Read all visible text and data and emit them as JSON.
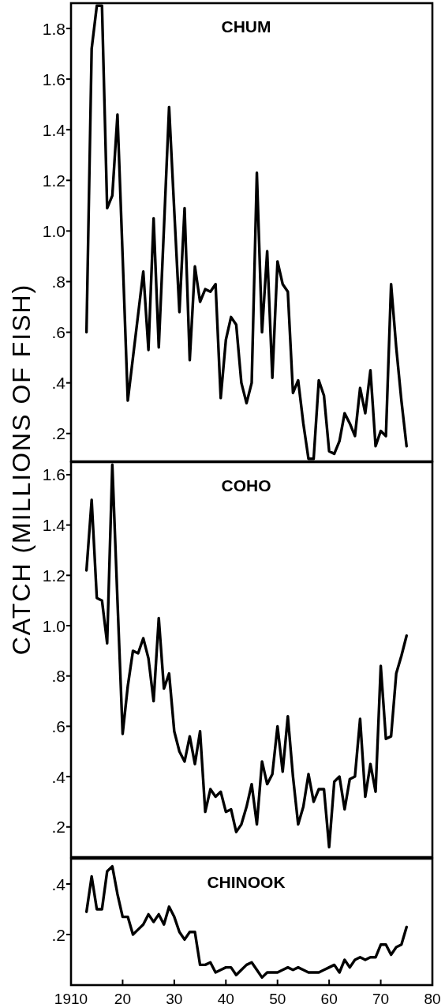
{
  "chart_data": [
    {
      "type": "line",
      "title": "CHUM",
      "ylabel": "CATCH (MILLIONS OF FISH)",
      "color": "#000000",
      "tick_labels": "y",
      "x": [
        1913,
        1914,
        1915,
        1916,
        1917,
        1918,
        1919,
        1920,
        1921,
        1922,
        1923,
        1924,
        1925,
        1926,
        1927,
        1928,
        1929,
        1930,
        1931,
        1932,
        1933,
        1934,
        1935,
        1936,
        1937,
        1938,
        1939,
        1940,
        1941,
        1942,
        1943,
        1944,
        1945,
        1946,
        1947,
        1948,
        1949,
        1950,
        1951,
        1952,
        1953,
        1954,
        1955,
        1956,
        1957,
        1958,
        1959,
        1960,
        1961,
        1962,
        1963,
        1964,
        1965,
        1966,
        1967,
        1968,
        1969,
        1970,
        1971,
        1972,
        1973,
        1974,
        1975
      ],
      "values": [
        0.6,
        1.72,
        1.89,
        1.89,
        1.09,
        1.14,
        1.46,
        0.9,
        0.33,
        0.5,
        0.67,
        0.84,
        0.53,
        1.05,
        0.54,
        1.01,
        1.49,
        1.08,
        0.68,
        1.09,
        0.49,
        0.86,
        0.72,
        0.77,
        0.76,
        0.79,
        0.34,
        0.57,
        0.66,
        0.63,
        0.4,
        0.32,
        0.4,
        1.23,
        0.6,
        0.92,
        0.42,
        0.88,
        0.79,
        0.76,
        0.36,
        0.41,
        0.24,
        0.1,
        0.1,
        0.41,
        0.35,
        0.13,
        0.12,
        0.17,
        0.28,
        0.24,
        0.19,
        0.38,
        0.28,
        0.45,
        0.15,
        0.21,
        0.19,
        0.79,
        0.54,
        0.33,
        0.15
      ],
      "xlim": [
        1910,
        1980
      ],
      "ylim": [
        0.09,
        1.9
      ],
      "yticks": [
        {
          "value": 0.2,
          "label": ".2"
        },
        {
          "value": 0.4,
          "label": ".4"
        },
        {
          "value": 0.6,
          "label": ".6"
        },
        {
          "value": 0.8,
          "label": ".8"
        },
        {
          "value": 1.0,
          "label": "1.0"
        },
        1.2,
        1.4,
        1.6,
        1.8
      ]
    },
    {
      "type": "line",
      "title": "COHO",
      "color": "#000000",
      "tick_labels": "y",
      "x": [
        1913,
        1914,
        1915,
        1916,
        1917,
        1918,
        1919,
        1920,
        1921,
        1922,
        1923,
        1924,
        1925,
        1926,
        1927,
        1928,
        1929,
        1930,
        1931,
        1932,
        1933,
        1934,
        1935,
        1936,
        1937,
        1938,
        1939,
        1940,
        1941,
        1942,
        1943,
        1944,
        1945,
        1946,
        1947,
        1948,
        1949,
        1950,
        1951,
        1952,
        1953,
        1954,
        1955,
        1956,
        1957,
        1958,
        1959,
        1960,
        1961,
        1962,
        1963,
        1964,
        1965,
        1966,
        1967,
        1968,
        1969,
        1970,
        1971,
        1972,
        1973,
        1974,
        1975
      ],
      "values": [
        1.22,
        1.5,
        1.11,
        1.1,
        0.93,
        1.64,
        1.1,
        0.57,
        0.76,
        0.9,
        0.89,
        0.95,
        0.87,
        0.7,
        1.03,
        0.75,
        0.81,
        0.58,
        0.5,
        0.46,
        0.56,
        0.45,
        0.58,
        0.26,
        0.35,
        0.32,
        0.34,
        0.26,
        0.27,
        0.18,
        0.21,
        0.28,
        0.37,
        0.21,
        0.46,
        0.37,
        0.41,
        0.6,
        0.42,
        0.64,
        0.4,
        0.21,
        0.28,
        0.41,
        0.3,
        0.35,
        0.35,
        0.12,
        0.38,
        0.4,
        0.27,
        0.39,
        0.4,
        0.63,
        0.32,
        0.45,
        0.34,
        0.84,
        0.55,
        0.56,
        0.81,
        0.88,
        0.96
      ],
      "xlim": [
        1910,
        1980
      ],
      "ylim": [
        0.08,
        1.65
      ],
      "yticks": [
        {
          "value": 0.2,
          "label": ".2"
        },
        {
          "value": 0.4,
          "label": ".4"
        },
        {
          "value": 0.6,
          "label": ".6"
        },
        {
          "value": 0.8,
          "label": ".8"
        },
        {
          "value": 1.0,
          "label": "1.0"
        },
        1.2,
        1.4,
        1.6
      ]
    },
    {
      "type": "line",
      "title": "CHINOOK",
      "color": "#000000",
      "x": [
        1913,
        1914,
        1915,
        1916,
        1917,
        1918,
        1919,
        1920,
        1921,
        1922,
        1923,
        1924,
        1925,
        1926,
        1927,
        1928,
        1929,
        1930,
        1931,
        1932,
        1933,
        1934,
        1935,
        1936,
        1937,
        1938,
        1939,
        1940,
        1941,
        1942,
        1943,
        1944,
        1945,
        1946,
        1947,
        1948,
        1949,
        1950,
        1951,
        1952,
        1953,
        1954,
        1955,
        1956,
        1957,
        1958,
        1959,
        1960,
        1961,
        1962,
        1963,
        1964,
        1965,
        1966,
        1967,
        1968,
        1969,
        1970,
        1971,
        1972,
        1973,
        1974,
        1975
      ],
      "values": [
        0.29,
        0.43,
        0.3,
        0.3,
        0.45,
        0.47,
        0.36,
        0.27,
        0.27,
        0.2,
        0.22,
        0.24,
        0.28,
        0.25,
        0.28,
        0.24,
        0.31,
        0.27,
        0.21,
        0.18,
        0.21,
        0.21,
        0.08,
        0.08,
        0.09,
        0.05,
        0.06,
        0.07,
        0.07,
        0.04,
        0.06,
        0.08,
        0.09,
        0.06,
        0.03,
        0.05,
        0.05,
        0.05,
        0.06,
        0.07,
        0.06,
        0.07,
        0.06,
        0.05,
        0.05,
        0.05,
        0.06,
        0.07,
        0.08,
        0.05,
        0.1,
        0.07,
        0.1,
        0.11,
        0.1,
        0.11,
        0.11,
        0.16,
        0.16,
        0.12,
        0.15,
        0.16,
        0.23
      ],
      "xlim": [
        1910,
        1980
      ],
      "xticks": [
        1910,
        {
          "value": 1920,
          "label": "20"
        },
        {
          "value": 1930,
          "label": "30"
        },
        {
          "value": 1940,
          "label": "40"
        },
        {
          "value": 1950,
          "label": "50"
        },
        {
          "value": 1960,
          "label": "60"
        },
        {
          "value": 1970,
          "label": "70"
        },
        {
          "value": 1980,
          "label": "80"
        }
      ],
      "ylim": [
        0,
        0.5
      ],
      "yticks": [
        {
          "value": 0.2,
          "label": ".2"
        },
        {
          "value": 0.4,
          "label": ".4"
        }
      ]
    }
  ]
}
